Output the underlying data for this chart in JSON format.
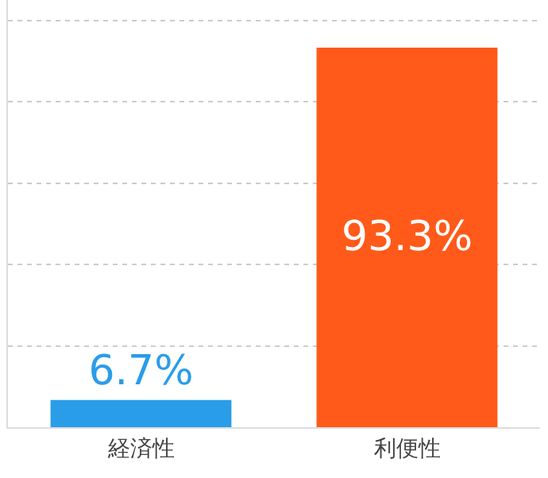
{
  "chart_data": {
    "type": "bar",
    "categories": [
      "経済性",
      "利便性"
    ],
    "values": [
      6.7,
      93.3
    ],
    "colors": [
      "#2a9de8",
      "#ff5a1a"
    ],
    "value_labels": [
      "6.7%",
      "93.3%"
    ],
    "ylim": [
      0,
      105
    ],
    "yticks": [
      {
        "value": 0,
        "label": null
      },
      {
        "value": 20,
        "label": null
      },
      {
        "value": 40,
        "label": null
      },
      {
        "value": 60,
        "label": null
      },
      {
        "value": 80,
        "label": null
      },
      {
        "value": 100,
        "label": null
      }
    ],
    "grid": "y",
    "tick_labels": "x",
    "line_style": "dotted"
  }
}
